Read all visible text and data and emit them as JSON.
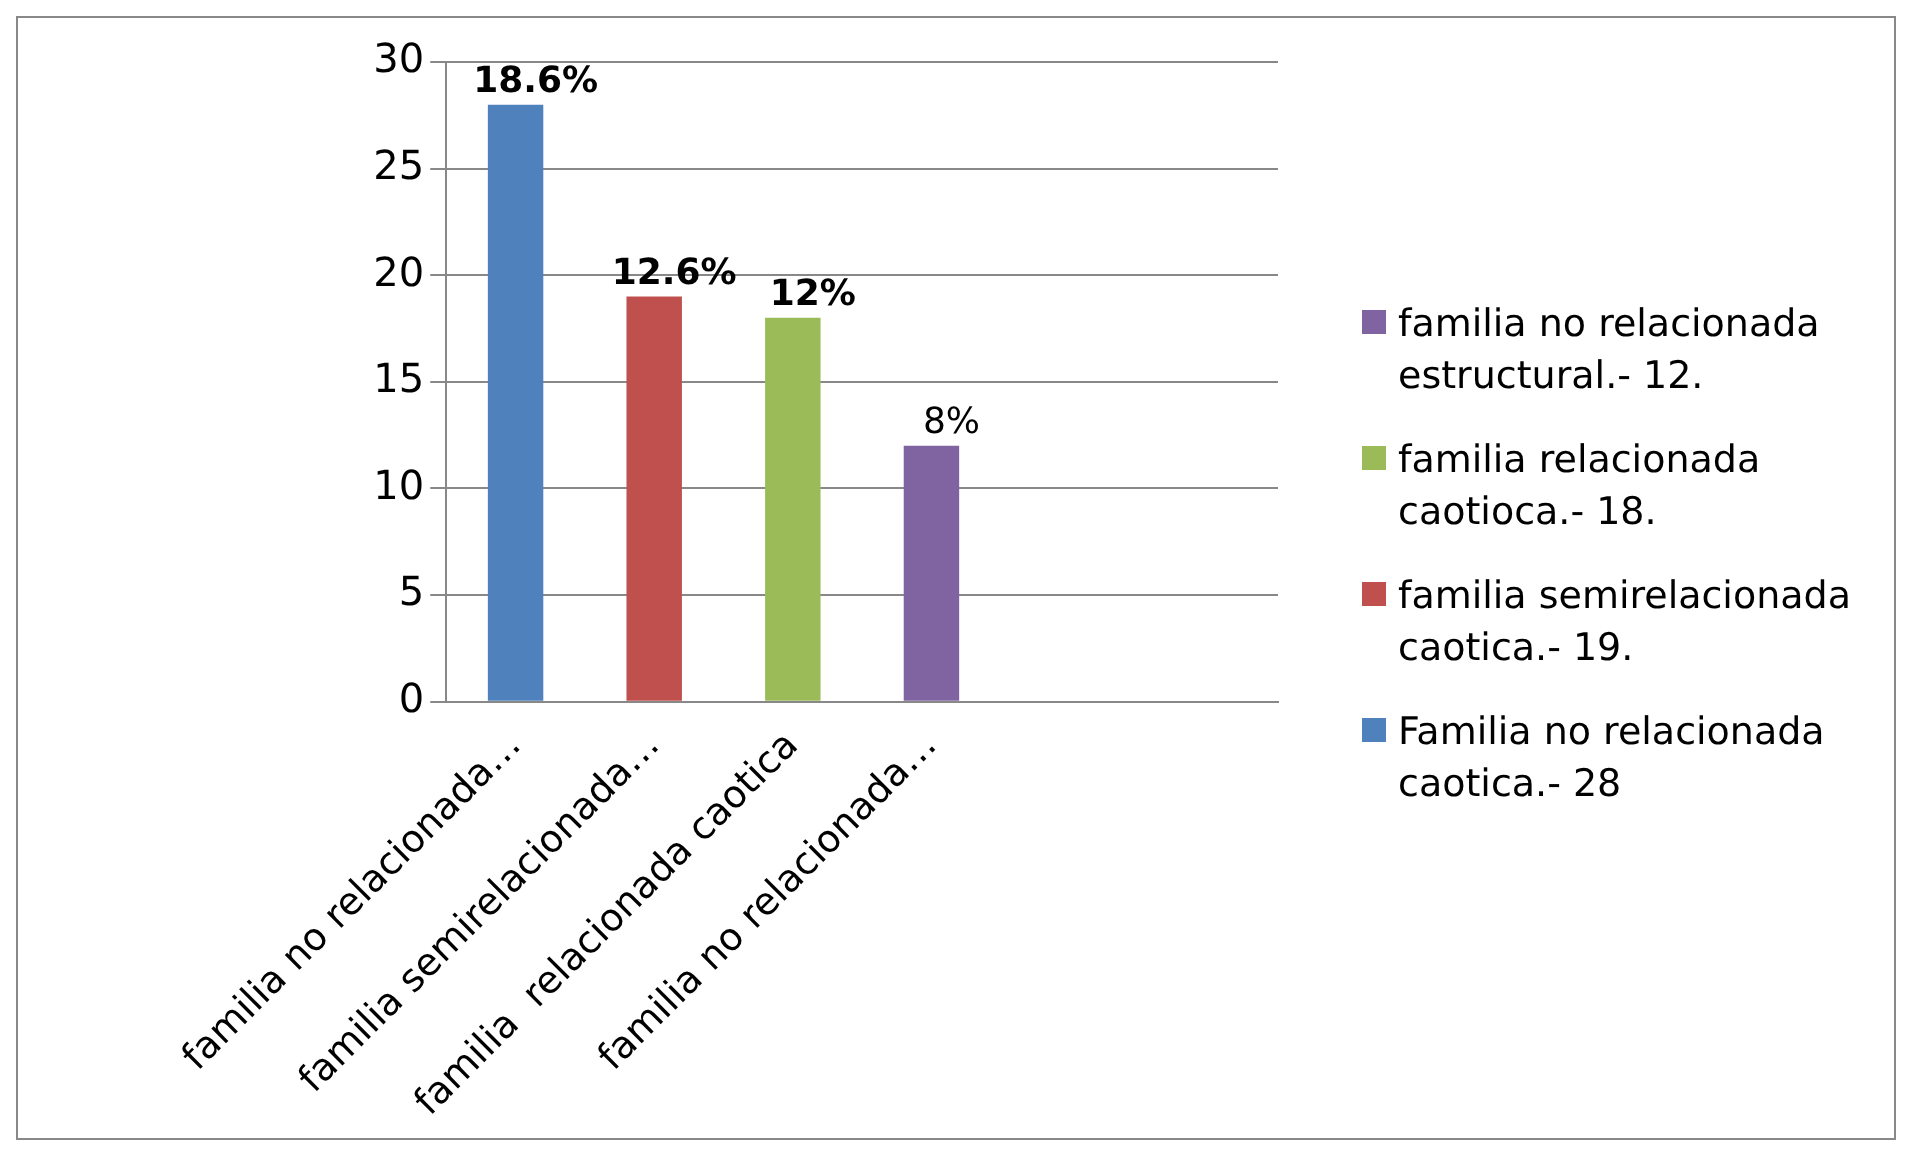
{
  "chart_data": {
    "type": "bar",
    "stacked": true,
    "categories": [
      "familia no relacionada…",
      "familia semirelacionada…",
      "familia  relacionada caotica",
      "familia no relacionada…",
      null,
      null
    ],
    "series": [
      {
        "name": "Familia no relacionada caotica.- 28",
        "color": "#4f81bd",
        "values": [
          28,
          null,
          null,
          null,
          null,
          null
        ]
      },
      {
        "name": "familia semirelacionada caotica.- 19.",
        "color": "#c0504d",
        "values": [
          null,
          19,
          null,
          null,
          null,
          null
        ]
      },
      {
        "name": "familia relacionada caotioca.- 18.",
        "color": "#9bbb59",
        "values": [
          null,
          null,
          18,
          null,
          null,
          null
        ]
      },
      {
        "name": "familia no relacionada estructural.- 12.",
        "color": "#8064a2",
        "values": [
          null,
          null,
          null,
          12,
          null,
          null
        ]
      }
    ],
    "annotations": [
      "18.6%",
      "12.6%",
      "12%",
      "8%"
    ],
    "ylim": [
      0,
      30
    ],
    "yticks": [
      0,
      5,
      10,
      15,
      20,
      25,
      30
    ],
    "grid": "y",
    "legend": "right"
  }
}
